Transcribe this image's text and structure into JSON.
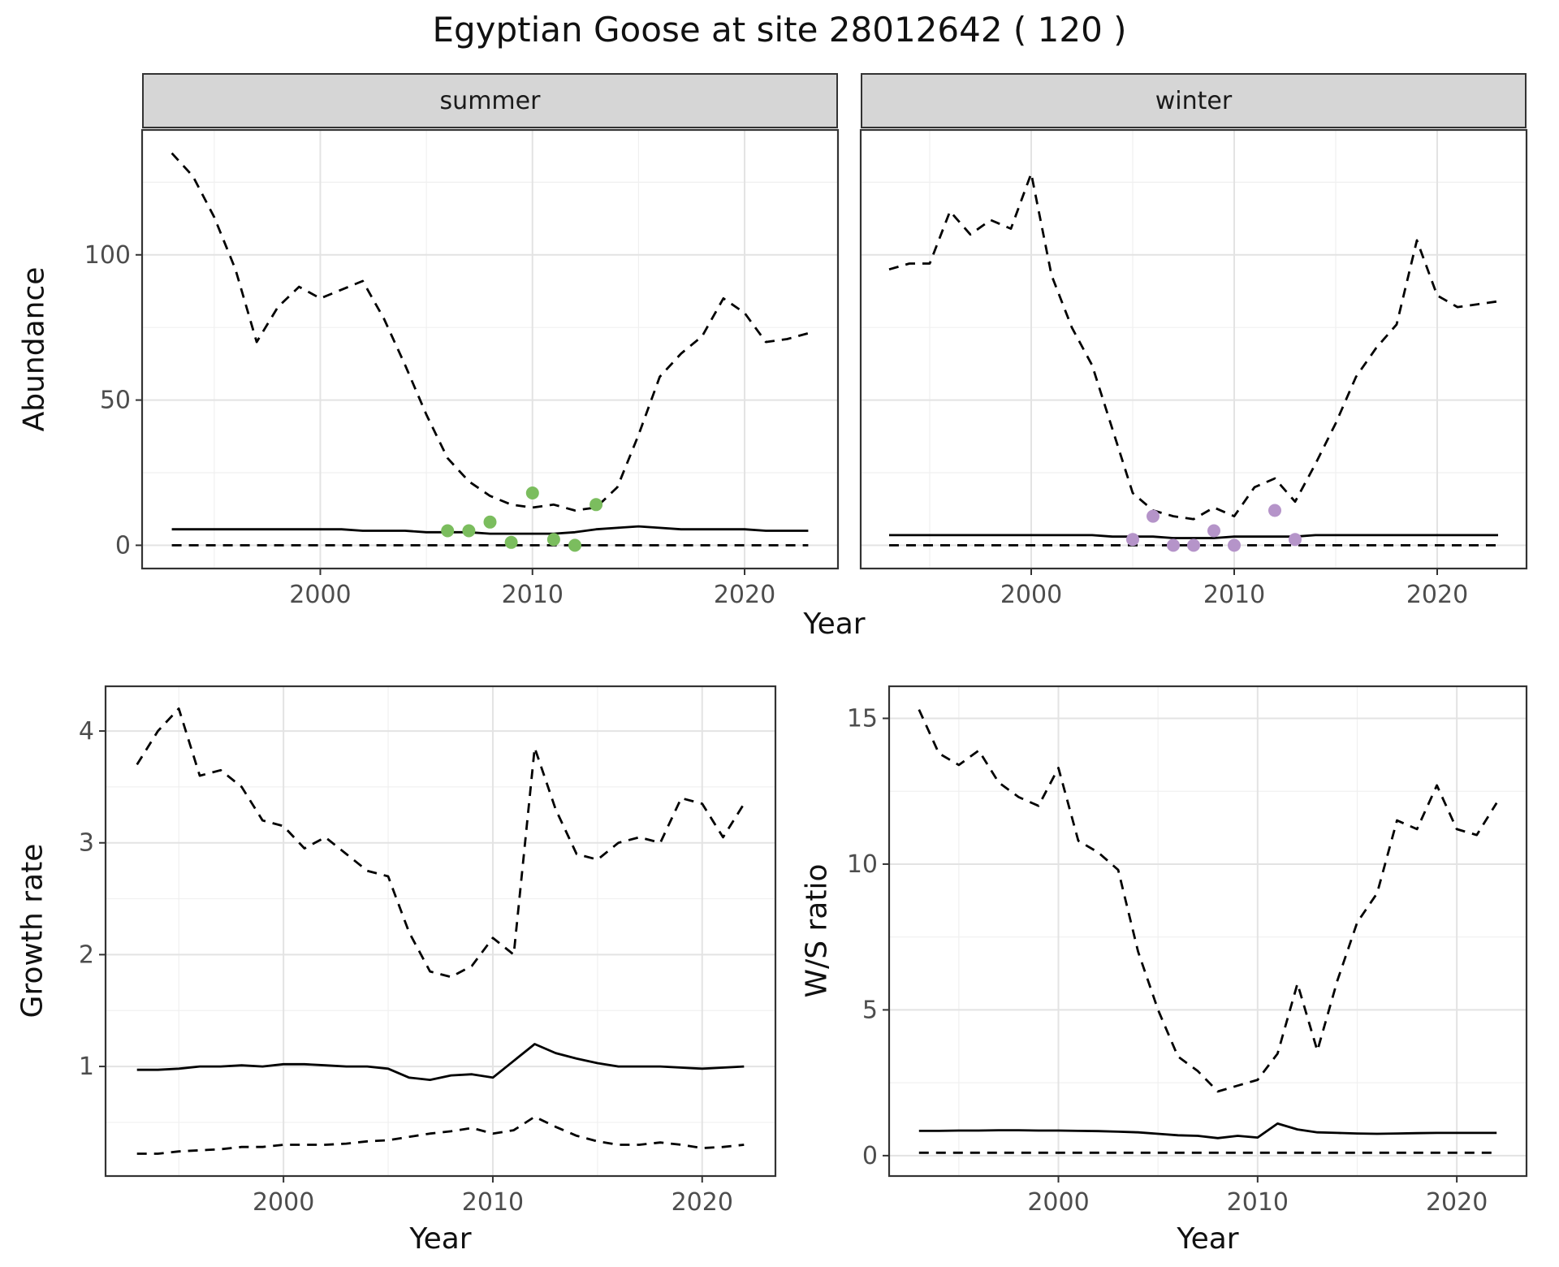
{
  "title": "Egyptian Goose at site 28012642 ( 120 )",
  "labels": {
    "year_axis": "Year",
    "abundance_axis": "Abundance",
    "growth_axis": "Growth rate",
    "ws_axis": "W/S ratio"
  },
  "facets": [
    {
      "label": "summer"
    },
    {
      "label": "winter"
    }
  ],
  "colors": {
    "summer_points": "#7bbd5e",
    "winter_points": "#b594c9",
    "line": "#000000",
    "strip_bg": "#d6d6d6",
    "panel_bg": "#ffffff",
    "grid_major": "#e3e3e3",
    "grid_minor": "#f0f0f0",
    "panel_border": "#333333",
    "tick_text": "#4d4d4d"
  },
  "chart_data": [
    {
      "id": "abundance-summer",
      "type": "line",
      "facet": "summer",
      "xlabel": "Year",
      "ylabel": "Abundance",
      "xlim": [
        1991.6,
        2024.4
      ],
      "ylim": [
        -8,
        143
      ],
      "xticks": [
        2000,
        2010,
        2020
      ],
      "yticks": [
        0,
        50,
        100
      ],
      "grid": true,
      "x": [
        1993,
        1994,
        1995,
        1996,
        1997,
        1998,
        1999,
        2000,
        2001,
        2002,
        2003,
        2004,
        2005,
        2006,
        2007,
        2008,
        2009,
        2010,
        2011,
        2012,
        2013,
        2014,
        2015,
        2016,
        2017,
        2018,
        2019,
        2020,
        2021,
        2022,
        2023
      ],
      "series": [
        {
          "name": "upper-ci",
          "type": "line",
          "style": "dashed",
          "values": [
            135,
            127,
            113,
            95,
            70,
            82,
            89,
            85,
            88,
            91,
            78,
            62,
            45,
            30,
            22,
            17,
            14,
            13,
            14,
            12,
            13,
            20,
            38,
            58,
            66,
            72,
            85,
            80,
            70,
            71,
            73
          ]
        },
        {
          "name": "median",
          "type": "line",
          "style": "solid",
          "values": [
            5.5,
            5.5,
            5.5,
            5.5,
            5.5,
            5.5,
            5.5,
            5.5,
            5.5,
            5,
            5,
            5,
            4.5,
            4.5,
            4.5,
            4,
            4,
            4,
            4,
            4.5,
            5.5,
            6,
            6.5,
            6,
            5.5,
            5.5,
            5.5,
            5.5,
            5,
            5,
            5
          ]
        },
        {
          "name": "lower-ci",
          "type": "line",
          "style": "dashed",
          "values": [
            0,
            0,
            0,
            0,
            0,
            0,
            0,
            0,
            0,
            0,
            0,
            0,
            0,
            0,
            0,
            0,
            0,
            0,
            0,
            0,
            0,
            0,
            0,
            0,
            0,
            0,
            0,
            0,
            0,
            0,
            0
          ]
        },
        {
          "name": "observed-counts",
          "type": "scatter",
          "color": "#7bbd5e",
          "x": [
            2006,
            2007,
            2008,
            2009,
            2010,
            2011,
            2012,
            2013
          ],
          "y": [
            5,
            5,
            8,
            1,
            18,
            2,
            0,
            14
          ]
        }
      ]
    },
    {
      "id": "abundance-winter",
      "type": "line",
      "facet": "winter",
      "xlabel": "Year",
      "ylabel": "Abundance",
      "xlim": [
        1991.6,
        2024.4
      ],
      "ylim": [
        -8,
        143
      ],
      "xticks": [
        2000,
        2010,
        2020
      ],
      "yticks": [
        0,
        50,
        100
      ],
      "grid": true,
      "x": [
        1993,
        1994,
        1995,
        1996,
        1997,
        1998,
        1999,
        2000,
        2001,
        2002,
        2003,
        2004,
        2005,
        2006,
        2007,
        2008,
        2009,
        2010,
        2011,
        2012,
        2013,
        2014,
        2015,
        2016,
        2017,
        2018,
        2019,
        2020,
        2021,
        2022,
        2023
      ],
      "series": [
        {
          "name": "upper-ci",
          "type": "line",
          "style": "dashed",
          "values": [
            95,
            97,
            97,
            115,
            107,
            112,
            109,
            128,
            93,
            75,
            62,
            40,
            18,
            12,
            10,
            9,
            13,
            10,
            20,
            23,
            15,
            28,
            42,
            58,
            68,
            76,
            105,
            86,
            82,
            83,
            84
          ]
        },
        {
          "name": "median",
          "type": "line",
          "style": "solid",
          "values": [
            3.5,
            3.5,
            3.5,
            3.5,
            3.5,
            3.5,
            3.5,
            3.5,
            3.5,
            3.5,
            3.5,
            3,
            3,
            3,
            2.5,
            2.5,
            2.5,
            3,
            3,
            3,
            3,
            3.5,
            3.5,
            3.5,
            3.5,
            3.5,
            3.5,
            3.5,
            3.5,
            3.5,
            3.5
          ]
        },
        {
          "name": "lower-ci",
          "type": "line",
          "style": "dashed",
          "values": [
            0,
            0,
            0,
            0,
            0,
            0,
            0,
            0,
            0,
            0,
            0,
            0,
            0,
            0,
            0,
            0,
            0,
            0,
            0,
            0,
            0,
            0,
            0,
            0,
            0,
            0,
            0,
            0,
            0,
            0,
            0
          ]
        },
        {
          "name": "observed-counts",
          "type": "scatter",
          "color": "#b594c9",
          "x": [
            2005,
            2006,
            2007,
            2008,
            2009,
            2010,
            2012,
            2013
          ],
          "y": [
            2,
            10,
            0,
            0,
            5,
            0,
            12,
            2
          ]
        }
      ]
    },
    {
      "id": "growth-rate",
      "type": "line",
      "xlabel": "Year",
      "ylabel": "Growth rate",
      "xlim": [
        1991.5,
        2023.5
      ],
      "ylim": [
        0.02,
        4.4
      ],
      "xticks": [
        2000,
        2010,
        2020
      ],
      "yticks": [
        1,
        2,
        3,
        4
      ],
      "grid": true,
      "x": [
        1993,
        1994,
        1995,
        1996,
        1997,
        1998,
        1999,
        2000,
        2001,
        2002,
        2003,
        2004,
        2005,
        2006,
        2007,
        2008,
        2009,
        2010,
        2011,
        2012,
        2013,
        2014,
        2015,
        2016,
        2017,
        2018,
        2019,
        2020,
        2021,
        2022
      ],
      "series": [
        {
          "name": "upper-ci",
          "type": "line",
          "style": "dashed",
          "values": [
            3.7,
            4.0,
            4.2,
            3.6,
            3.65,
            3.5,
            3.2,
            3.15,
            2.95,
            3.05,
            2.9,
            2.75,
            2.7,
            2.2,
            1.85,
            1.8,
            1.9,
            2.15,
            2.0,
            3.85,
            3.3,
            2.9,
            2.85,
            3.0,
            3.05,
            3.0,
            3.4,
            3.35,
            3.05,
            3.35
          ]
        },
        {
          "name": "median",
          "type": "line",
          "style": "solid",
          "values": [
            0.97,
            0.97,
            0.98,
            1.0,
            1.0,
            1.01,
            1.0,
            1.02,
            1.02,
            1.01,
            1.0,
            1.0,
            0.98,
            0.9,
            0.88,
            0.92,
            0.93,
            0.9,
            1.05,
            1.2,
            1.12,
            1.07,
            1.03,
            1.0,
            1.0,
            1.0,
            0.99,
            0.98,
            0.99,
            1.0
          ]
        },
        {
          "name": "lower-ci",
          "type": "line",
          "style": "dashed",
          "values": [
            0.22,
            0.22,
            0.24,
            0.25,
            0.26,
            0.28,
            0.28,
            0.3,
            0.3,
            0.3,
            0.31,
            0.33,
            0.34,
            0.37,
            0.4,
            0.42,
            0.45,
            0.4,
            0.43,
            0.55,
            0.46,
            0.38,
            0.33,
            0.3,
            0.3,
            0.32,
            0.3,
            0.27,
            0.28,
            0.3
          ]
        }
      ]
    },
    {
      "id": "ws-ratio",
      "type": "line",
      "xlabel": "Year",
      "ylabel": "W/S ratio",
      "xlim": [
        1991.5,
        2023.5
      ],
      "ylim": [
        -0.7,
        16.1
      ],
      "xticks": [
        2000,
        2010,
        2020
      ],
      "yticks": [
        0,
        5,
        10,
        15
      ],
      "grid": true,
      "x": [
        1993,
        1994,
        1995,
        1996,
        1997,
        1998,
        1999,
        2000,
        2001,
        2002,
        2003,
        2004,
        2005,
        2006,
        2007,
        2008,
        2009,
        2010,
        2011,
        2012,
        2013,
        2014,
        2015,
        2016,
        2017,
        2018,
        2019,
        2020,
        2021,
        2022
      ],
      "series": [
        {
          "name": "upper-ci",
          "type": "line",
          "style": "dashed",
          "values": [
            15.3,
            13.8,
            13.4,
            13.9,
            12.8,
            12.3,
            12.0,
            13.3,
            10.8,
            10.4,
            9.8,
            7.0,
            5.0,
            3.4,
            2.9,
            2.2,
            2.4,
            2.6,
            3.5,
            5.9,
            3.6,
            6.0,
            8.0,
            9.0,
            11.5,
            11.2,
            12.7,
            11.2,
            11.0,
            12.1
          ]
        },
        {
          "name": "median",
          "type": "line",
          "style": "solid",
          "values": [
            0.85,
            0.85,
            0.86,
            0.86,
            0.87,
            0.87,
            0.86,
            0.86,
            0.85,
            0.84,
            0.82,
            0.8,
            0.75,
            0.7,
            0.68,
            0.6,
            0.68,
            0.62,
            1.1,
            0.9,
            0.8,
            0.78,
            0.76,
            0.75,
            0.76,
            0.77,
            0.78,
            0.78,
            0.78,
            0.78
          ]
        },
        {
          "name": "lower-ci",
          "type": "line",
          "style": "dashed",
          "values": [
            0.1,
            0.1,
            0.1,
            0.1,
            0.1,
            0.1,
            0.1,
            0.1,
            0.1,
            0.1,
            0.1,
            0.1,
            0.1,
            0.1,
            0.1,
            0.1,
            0.1,
            0.1,
            0.1,
            0.1,
            0.1,
            0.1,
            0.1,
            0.1,
            0.1,
            0.1,
            0.1,
            0.1,
            0.1,
            0.1
          ]
        }
      ]
    }
  ]
}
